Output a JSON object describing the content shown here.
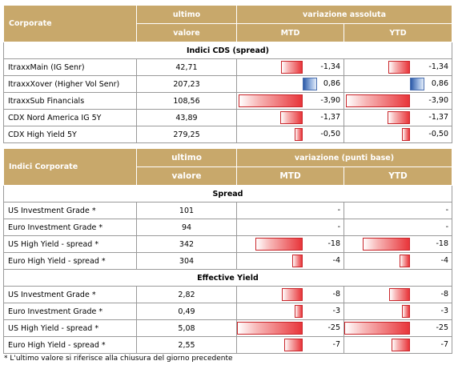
{
  "table1": {
    "header": {
      "col1": "Corporate",
      "col2a": "ultimo",
      "col2b": "valore",
      "group": "variazione assoluta",
      "mtd": "MTD",
      "ytd": "YTD"
    },
    "section": "Indici CDS (spread)",
    "scale": 4,
    "rows": [
      {
        "name": "ItraxxMain (IG Senr)",
        "value": "42,71",
        "mtd": -1.34,
        "mtd_label": "-1,34",
        "ytd": -1.34,
        "ytd_label": "-1,34"
      },
      {
        "name": "ItraxxXover (Higher Vol Senr)",
        "value": "207,23",
        "mtd": 0.86,
        "mtd_label": "0,86",
        "ytd": 0.86,
        "ytd_label": "0,86"
      },
      {
        "name": "ItraxxSub Financials",
        "value": "108,56",
        "mtd": -3.9,
        "mtd_label": "-3,90",
        "ytd": -3.9,
        "ytd_label": "-3,90"
      },
      {
        "name": "CDX Nord America IG 5Y",
        "value": "43,89",
        "mtd": -1.37,
        "mtd_label": "-1,37",
        "ytd": -1.37,
        "ytd_label": "-1,37"
      },
      {
        "name": "CDX High Yield 5Y",
        "value": "279,25",
        "mtd": -0.5,
        "mtd_label": "-0,50",
        "ytd": -0.5,
        "ytd_label": "-0,50"
      }
    ]
  },
  "table2": {
    "header": {
      "col1": "Indici Corporate",
      "col2a": "ultimo",
      "col2b": "valore",
      "group": "variazione (punti base)",
      "mtd": "MTD",
      "ytd": "YTD"
    },
    "scale": 25,
    "sections": [
      {
        "title": "Spread",
        "rows": [
          {
            "name": "US Investment Grade *",
            "value": "101",
            "mtd": 0,
            "mtd_label": "-",
            "ytd": 0,
            "ytd_label": "-"
          },
          {
            "name": "Euro Investment Grade *",
            "value": "94",
            "mtd": 0,
            "mtd_label": "-",
            "ytd": 0,
            "ytd_label": "-"
          },
          {
            "name": "US High Yield  - spread *",
            "value": "342",
            "mtd": -18,
            "mtd_label": "-18",
            "ytd": -18,
            "ytd_label": "-18"
          },
          {
            "name": "Euro High Yield  - spread *",
            "value": "304",
            "mtd": -4,
            "mtd_label": "-4",
            "ytd": -4,
            "ytd_label": "-4"
          }
        ]
      },
      {
        "title": "Effective Yield",
        "rows": [
          {
            "name": "US Investment Grade *",
            "value": "2,82",
            "mtd": -8,
            "mtd_label": "-8",
            "ytd": -8,
            "ytd_label": "-8"
          },
          {
            "name": "Euro Investment Grade *",
            "value": "0,49",
            "mtd": -3,
            "mtd_label": "-3",
            "ytd": -3,
            "ytd_label": "-3"
          },
          {
            "name": "US High Yield  - spread *",
            "value": "5,08",
            "mtd": -25,
            "mtd_label": "-25",
            "ytd": -25,
            "ytd_label": "-25"
          },
          {
            "name": "Euro High Yield  - spread *",
            "value": "2,55",
            "mtd": -7,
            "mtd_label": "-7",
            "ytd": -7,
            "ytd_label": "-7"
          }
        ]
      }
    ]
  },
  "footnote": "* L'ultimo valore si riferisce alla chiusura del giorno precedente",
  "colors": {
    "header": "#c8a86b",
    "negative": "#e8353a",
    "positive": "#2c5aa8"
  }
}
